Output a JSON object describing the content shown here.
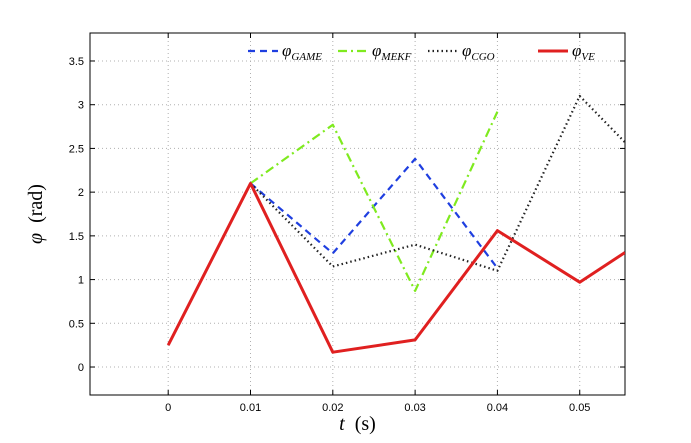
{
  "chart_data": {
    "type": "line",
    "xlabel": {
      "symbol": "t",
      "unit": "(s)"
    },
    "ylabel": {
      "symbol": "φ",
      "unit": "(rad)"
    },
    "xlim": [
      -0.0095,
      0.0555
    ],
    "ylim": [
      -0.32,
      3.82
    ],
    "xticks": [
      0,
      0.01,
      0.02,
      0.03,
      0.04,
      0.05
    ],
    "xtick_labels": [
      "0",
      "0.01",
      "0.02",
      "0.03",
      "0.04",
      "0.05"
    ],
    "yticks": [
      0,
      0.5,
      1,
      1.5,
      2,
      2.5,
      3,
      3.5
    ],
    "ytick_labels": [
      "0",
      "0.5",
      "1",
      "1.5",
      "2",
      "2.5",
      "3",
      "3.5"
    ],
    "grid": true,
    "legend_position": "top-right",
    "series": [
      {
        "name": "φ",
        "subscript": "GAME",
        "color": "#1f3fe0",
        "style": "dashed",
        "x": [
          0.01,
          0.02,
          0.03,
          0.04
        ],
        "y": [
          2.1,
          1.3,
          2.38,
          1.13
        ]
      },
      {
        "name": "φ",
        "subscript": "MEKF",
        "color": "#7fea1f",
        "style": "dashdot",
        "x": [
          0.01,
          0.02,
          0.03,
          0.04
        ],
        "y": [
          2.1,
          2.77,
          0.87,
          2.92
        ]
      },
      {
        "name": "φ",
        "subscript": "CGO",
        "color": "#222222",
        "style": "dotted",
        "x": [
          0.01,
          0.02,
          0.03,
          0.04,
          0.05,
          0.0555
        ],
        "y": [
          2.1,
          1.15,
          1.4,
          1.1,
          3.1,
          2.57
        ]
      },
      {
        "name": "φ",
        "subscript": "VE",
        "color": "#e02020",
        "style": "solid",
        "x": [
          0,
          0.01,
          0.02,
          0.03,
          0.04,
          0.05,
          0.0555
        ],
        "y": [
          0.25,
          2.1,
          0.17,
          0.31,
          1.56,
          0.97,
          1.31
        ]
      }
    ]
  }
}
